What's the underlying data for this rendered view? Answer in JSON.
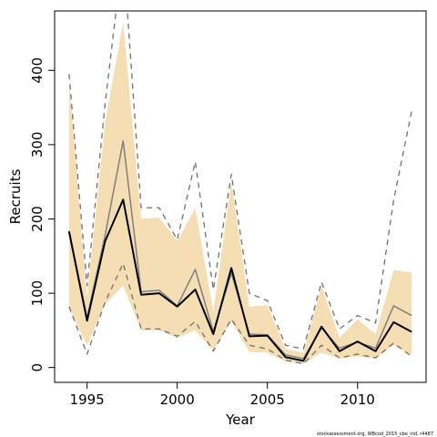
{
  "chart_data": {
    "type": "line",
    "xlabel": "Year",
    "ylabel": "Recruits",
    "xlim": [
      1993.2,
      2013.8
    ],
    "ylim": [
      -20,
      480
    ],
    "x_ticks": [
      "1995",
      "2000",
      "2005",
      "2010"
    ],
    "x_tick_values": [
      1995,
      2000,
      2005,
      2010
    ],
    "y_ticks": [
      "0",
      "100",
      "200",
      "300",
      "400"
    ],
    "y_tick_values": [
      0,
      100,
      200,
      300,
      400
    ],
    "years": [
      1994,
      1995,
      1996,
      1997,
      1998,
      1999,
      2000,
      2001,
      2002,
      2003,
      2004,
      2005,
      2006,
      2007,
      2008,
      2009,
      2010,
      2011,
      2012,
      2013
    ],
    "band_upper": [
      385,
      95,
      330,
      465,
      200,
      202,
      170,
      215,
      75,
      250,
      82,
      84,
      25,
      20,
      110,
      40,
      65,
      45,
      131,
      128
    ],
    "band_lower": [
      80,
      30,
      85,
      110,
      50,
      50,
      40,
      50,
      23,
      62,
      21,
      20,
      8,
      5,
      20,
      12,
      15,
      12,
      30,
      17
    ],
    "series": [
      {
        "values": [
          183,
          63,
          170,
          226,
          98,
          100,
          82,
          105,
          45,
          134,
          42,
          43,
          14,
          9,
          55,
          22,
          35,
          22,
          61,
          48
        ],
        "color": "#000000",
        "width": 2
      },
      {
        "values": [
          184,
          67,
          178,
          305,
          102,
          104,
          83,
          132,
          48,
          127,
          45,
          44,
          17,
          12,
          53,
          26,
          34,
          26,
          83,
          70
        ],
        "color": "#808080",
        "width": 1.5
      },
      {
        "values": [
          395,
          110,
          355,
          560,
          215,
          215,
          172,
          277,
          105,
          260,
          100,
          90,
          30,
          25,
          115,
          52,
          70,
          60,
          225,
          345
        ],
        "color": "#707070",
        "width": 1.3,
        "dash": "6,5"
      },
      {
        "values": [
          82,
          18,
          88,
          140,
          52,
          52,
          42,
          62,
          22,
          65,
          30,
          25,
          10,
          5,
          30,
          13,
          18,
          13,
          33,
          15
        ],
        "color": "#707070",
        "width": 1.3,
        "dash": "6,5"
      }
    ],
    "band_color": "#F5DEB3",
    "credit": "stockassessment.org, WBcod_2015_cbe_ind, r4487"
  }
}
